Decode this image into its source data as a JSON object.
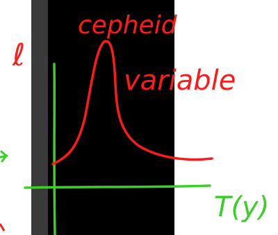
{
  "labels": {
    "title_line1": "cepheid",
    "title_line2": "variable",
    "y_axis": "ℓ",
    "x_axis": "T(y)"
  }
}
